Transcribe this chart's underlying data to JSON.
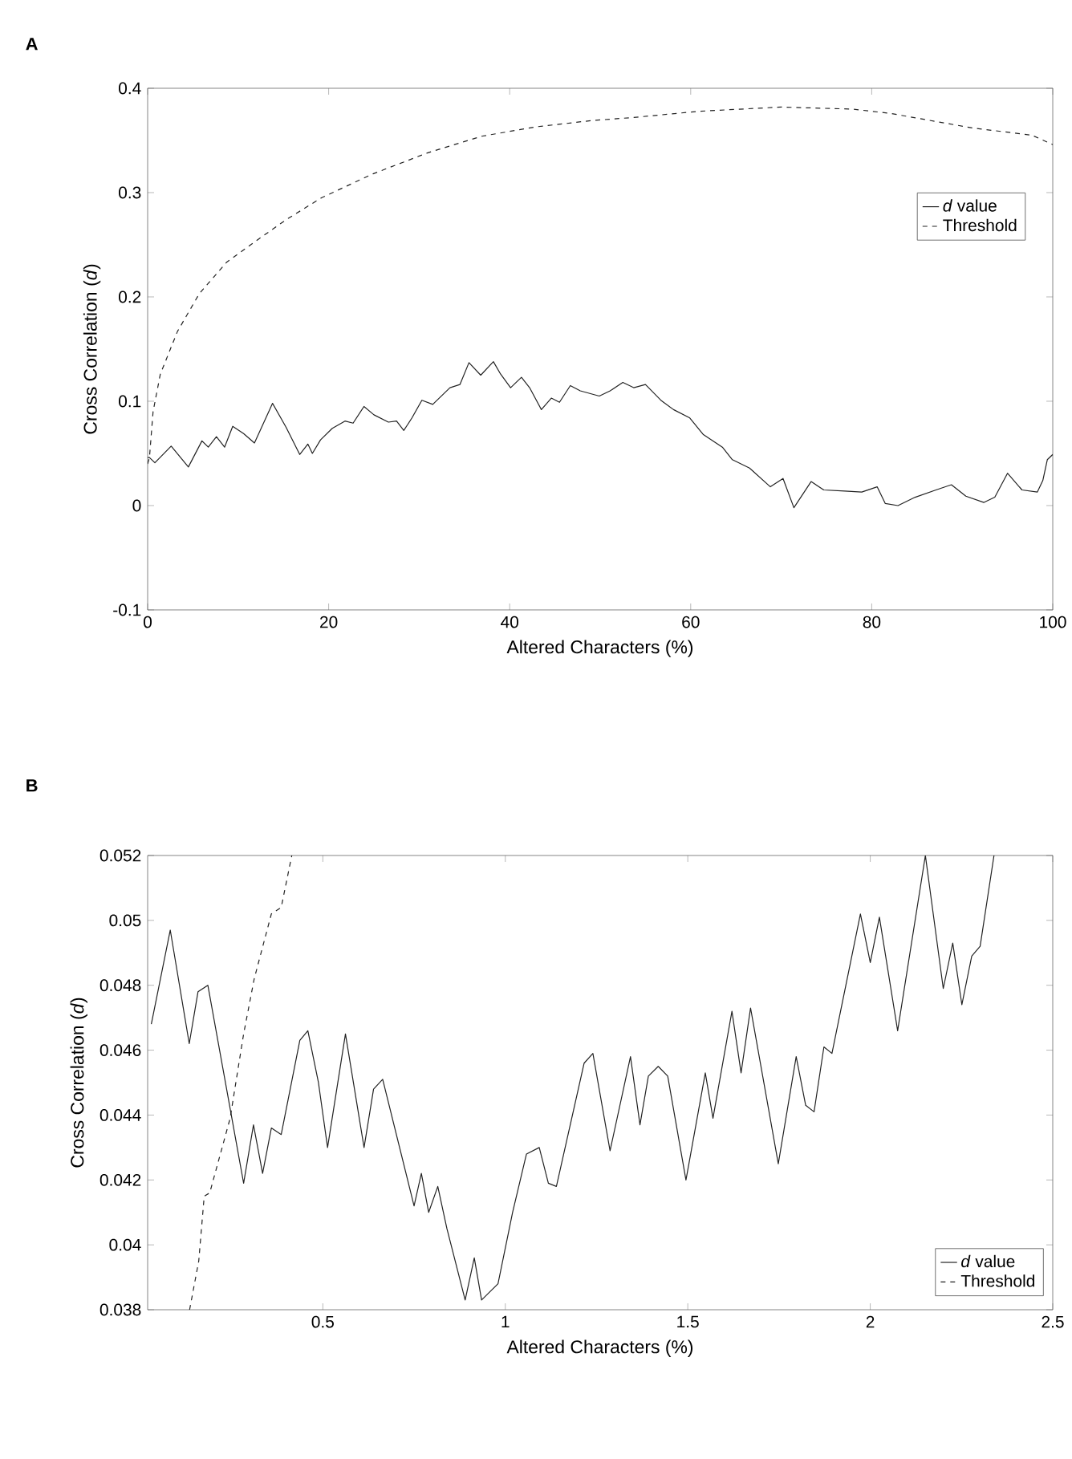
{
  "chart_data": [
    {
      "type": "line",
      "title": "A",
      "xlabel": "Altered Characters (%)",
      "ylabel": "Cross Correlation (*d*)",
      "xlim": [
        0,
        100
      ],
      "ylim": [
        -0.1,
        0.4
      ],
      "xticks": [
        0,
        20,
        40,
        60,
        80,
        100
      ],
      "yticks": [
        -0.1,
        0,
        0.1,
        0.2,
        0.3,
        0.4
      ],
      "legend": "top right",
      "marker": "none",
      "series": [
        {
          "name": "*d* value",
          "color": "#222222",
          "line_style": "solid",
          "x": [
            0,
            0.2,
            0.8,
            2.6,
            4.5,
            6.0,
            6.7,
            7.6,
            8.5,
            9.4,
            10.6,
            11.8,
            13.8,
            15.3,
            16.8,
            17.7,
            18.2,
            19.1,
            20.4,
            21.8,
            22.7,
            23.9,
            25.0,
            26.6,
            27.5,
            28.3,
            29.2,
            30.3,
            31.5,
            33.4,
            34.5,
            35.5,
            36.8,
            38.2,
            39.0,
            40.1,
            41.3,
            42.2,
            43.5,
            44.6,
            45.5,
            46.7,
            47.8,
            49.9,
            51.1,
            52.5,
            53.7,
            55.0,
            56.7,
            58.1,
            59.9,
            61.4,
            63.5,
            64.6,
            66.5,
            68.8,
            70.2,
            71.4,
            73.3,
            74.7,
            77.0,
            78.9,
            80.6,
            81.5,
            82.9,
            84.8,
            87.1,
            88.8,
            90.4,
            92.4,
            93.6,
            95.0,
            96.6,
            98.3,
            98.9,
            99.4,
            100
          ],
          "values": [
            0.046,
            0.046,
            0.041,
            0.057,
            0.037,
            0.062,
            0.056,
            0.066,
            0.056,
            0.076,
            0.069,
            0.06,
            0.098,
            0.075,
            0.049,
            0.059,
            0.05,
            0.063,
            0.074,
            0.081,
            0.079,
            0.095,
            0.087,
            0.08,
            0.081,
            0.072,
            0.084,
            0.101,
            0.097,
            0.113,
            0.116,
            0.137,
            0.125,
            0.138,
            0.126,
            0.113,
            0.123,
            0.113,
            0.092,
            0.103,
            0.099,
            0.115,
            0.11,
            0.105,
            0.11,
            0.118,
            0.113,
            0.116,
            0.101,
            0.092,
            0.084,
            0.068,
            0.056,
            0.044,
            0.036,
            0.018,
            0.026,
            -0.002,
            0.023,
            0.015,
            0.014,
            0.013,
            0.018,
            0.002,
            0.0,
            0.008,
            0.015,
            0.02,
            0.009,
            0.003,
            0.008,
            0.031,
            0.015,
            0.013,
            0.024,
            0.044,
            0.049
          ]
        },
        {
          "name": "Threshold",
          "color": "#222222",
          "line_style": "dashed",
          "x": [
            0,
            0.2,
            0.6,
            1.4,
            3.3,
            5.7,
            8.7,
            11.7,
            15.3,
            19.2,
            24.9,
            30.9,
            36.9,
            42.9,
            49.0,
            53.7,
            61.0,
            70.0,
            77.9,
            82.0,
            91.1,
            97.7,
            100
          ],
          "values": [
            0.04,
            0.046,
            0.09,
            0.126,
            0.167,
            0.203,
            0.233,
            0.252,
            0.274,
            0.295,
            0.318,
            0.338,
            0.354,
            0.363,
            0.369,
            0.372,
            0.378,
            0.382,
            0.38,
            0.376,
            0.362,
            0.355,
            0.346
          ]
        }
      ]
    },
    {
      "type": "line",
      "title": "B",
      "xlabel": "Altered Characters (%)",
      "ylabel": "Cross Correlation (*d*)",
      "xlim": [
        0.02,
        2.5
      ],
      "ylim": [
        0.038,
        0.052
      ],
      "xticks": [
        0.5,
        1,
        1.5,
        2,
        2.5
      ],
      "yticks": [
        0.038,
        0.04,
        0.042,
        0.044,
        0.046,
        0.048,
        0.05,
        0.052
      ],
      "legend": "bottom right",
      "marker": "none",
      "series": [
        {
          "name": "*d* value",
          "color": "#222222",
          "line_style": "solid",
          "x": [
            0.03,
            0.082,
            0.134,
            0.158,
            0.185,
            0.283,
            0.31,
            0.335,
            0.359,
            0.386,
            0.437,
            0.459,
            0.488,
            0.513,
            0.562,
            0.613,
            0.639,
            0.664,
            0.75,
            0.77,
            0.79,
            0.815,
            0.84,
            0.89,
            0.915,
            0.935,
            0.98,
            1.02,
            1.058,
            1.093,
            1.118,
            1.14,
            1.216,
            1.24,
            1.287,
            1.343,
            1.369,
            1.392,
            1.419,
            1.445,
            1.495,
            1.548,
            1.569,
            1.621,
            1.646,
            1.672,
            1.748,
            1.797,
            1.823,
            1.846,
            1.873,
            1.895,
            1.973,
            2.0,
            2.025,
            2.075,
            2.151,
            2.2,
            2.226,
            2.251,
            2.278,
            2.301,
            2.339
          ],
          "values": [
            0.0468,
            0.0497,
            0.0462,
            0.0478,
            0.048,
            0.0419,
            0.0437,
            0.0422,
            0.0436,
            0.0434,
            0.0463,
            0.0466,
            0.045,
            0.043,
            0.0465,
            0.043,
            0.0448,
            0.0451,
            0.0412,
            0.0422,
            0.041,
            0.0418,
            0.0405,
            0.0383,
            0.0396,
            0.0383,
            0.0388,
            0.041,
            0.0428,
            0.043,
            0.0419,
            0.0418,
            0.0456,
            0.0459,
            0.0429,
            0.0458,
            0.0437,
            0.0452,
            0.0455,
            0.0452,
            0.042,
            0.0453,
            0.0439,
            0.0472,
            0.0453,
            0.0473,
            0.0425,
            0.0458,
            0.0443,
            0.0441,
            0.0461,
            0.0459,
            0.0502,
            0.0487,
            0.0501,
            0.0466,
            0.052,
            0.0479,
            0.0493,
            0.0474,
            0.0489,
            0.0492,
            0.052
          ]
        },
        {
          "name": "Threshold",
          "color": "#222222",
          "line_style": "dashed",
          "x": [
            0.135,
            0.16,
            0.175,
            0.19,
            0.195,
            0.246,
            0.283,
            0.312,
            0.359,
            0.386,
            0.415
          ],
          "values": [
            0.038,
            0.0395,
            0.0415,
            0.0416,
            0.0418,
            0.0439,
            0.0465,
            0.0482,
            0.0502,
            0.0504,
            0.052
          ]
        }
      ]
    }
  ]
}
